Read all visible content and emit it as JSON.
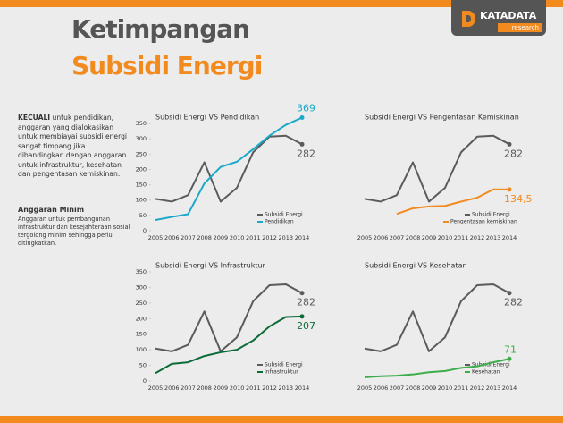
{
  "header": {
    "title": "Ketimpangan",
    "subtitle": "Subsidi Energi"
  },
  "logo": {
    "name": "KATADATA",
    "tag": "research"
  },
  "intro": {
    "lead": "KECUALI",
    "text": " untuk pendidikan, anggaran yang dialokasikan untuk membiayai subsidi energi sangat timpang jika dibandingkan dengan anggaran untuk infrastruktur, kesehatan dan pengentasan kemiskinan."
  },
  "section": {
    "heading": "Anggaran Minim",
    "text": "Anggaran untuk pembangunan infrastruktur dan kesejahteraan sosial tergolong minim sehingga perlu ditingkatkan."
  },
  "chart_data": [
    {
      "type": "line",
      "title": "Subsidi Energi VS Pendidikan",
      "categories": [
        "2005",
        "2006",
        "2007",
        "2008",
        "2009",
        "2010",
        "2011",
        "2012",
        "2013",
        "2014"
      ],
      "ylim": [
        0,
        350
      ],
      "yticks": [
        0,
        50,
        100,
        150,
        200,
        250,
        300,
        350
      ],
      "series": [
        {
          "name": "Subsidi Energi",
          "color": "#5b5b5b",
          "values": [
            104,
            95,
            116,
            223,
            95,
            140,
            256,
            307,
            310,
            282
          ]
        },
        {
          "name": "Pendidikan",
          "color": "#1aa9c9",
          "values": [
            35,
            45,
            54,
            154,
            208,
            225,
            266,
            310,
            345,
            369
          ]
        }
      ]
    },
    {
      "type": "line",
      "title": "Subsidi Energi VS Pengentasan Kemiskinan",
      "categories": [
        "2005",
        "2006",
        "2007",
        "2008",
        "2009",
        "2010",
        "2011",
        "2012",
        "2013",
        "2014"
      ],
      "ylim": [
        0,
        350
      ],
      "series": [
        {
          "name": "Subsidi Energi",
          "color": "#5b5b5b",
          "values": [
            104,
            95,
            116,
            223,
            95,
            140,
            256,
            307,
            310,
            282
          ]
        },
        {
          "name": "Pengentasan kemiskinan",
          "color": "#f28a1e",
          "values": [
            null,
            null,
            55,
            73,
            79,
            81,
            95,
            108,
            135,
            134.5
          ],
          "value_labels": [
            null,
            null,
            null,
            null,
            null,
            null,
            null,
            null,
            null,
            "134,5"
          ]
        }
      ]
    },
    {
      "type": "line",
      "title": "Subsidi Energi VS Infrastruktur",
      "categories": [
        "2005",
        "2006",
        "2007",
        "2008",
        "2009",
        "2010",
        "2011",
        "2012",
        "2013",
        "2014"
      ],
      "ylim": [
        0,
        350
      ],
      "yticks": [
        0,
        50,
        100,
        150,
        200,
        250,
        300,
        350
      ],
      "series": [
        {
          "name": "Subsidi Energi",
          "color": "#5b5b5b",
          "values": [
            104,
            95,
            116,
            223,
            95,
            140,
            256,
            307,
            310,
            282
          ]
        },
        {
          "name": "Infrastruktur",
          "color": "#0d6b3a",
          "values": [
            25,
            55,
            60,
            80,
            92,
            100,
            130,
            175,
            205,
            207
          ]
        }
      ]
    },
    {
      "type": "line",
      "title": "Subsidi Energi VS Kesehatan",
      "categories": [
        "2005",
        "2006",
        "2007",
        "2008",
        "2009",
        "2010",
        "2011",
        "2012",
        "2013",
        "2014"
      ],
      "ylim": [
        0,
        350
      ],
      "series": [
        {
          "name": "Subsidi Energi",
          "color": "#5b5b5b",
          "values": [
            104,
            95,
            116,
            223,
            95,
            140,
            256,
            307,
            310,
            282
          ]
        },
        {
          "name": "Kesehatan",
          "color": "#3cad4a",
          "values": [
            12,
            15,
            17,
            21,
            28,
            32,
            42,
            47,
            60,
            71
          ]
        }
      ]
    }
  ]
}
